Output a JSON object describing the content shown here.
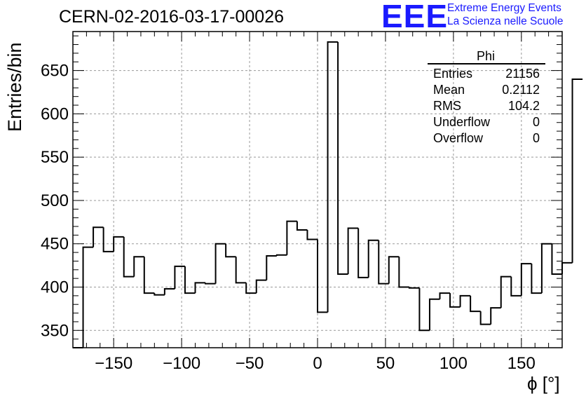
{
  "page": {
    "title": "CERN-02-2016-03-17-00026"
  },
  "logo": {
    "mark": "EEE",
    "line1": "Extreme Energy Events",
    "line2": "La Scienza nelle Scuole"
  },
  "stats": {
    "title": "Phi",
    "rows": [
      {
        "label": "Entries",
        "value": "21156"
      },
      {
        "label": "Mean",
        "value": "0.2112"
      },
      {
        "label": "RMS",
        "value": "104.2"
      },
      {
        "label": "Underflow",
        "value": "0"
      },
      {
        "label": "Overflow",
        "value": "0"
      }
    ]
  },
  "chart_data": {
    "type": "bar",
    "style": "step-histogram",
    "title": "CERN-02-2016-03-17-00026",
    "xlabel": "ϕ [°]",
    "ylabel": "Entries/bin",
    "xlim": [
      -180,
      180
    ],
    "ylim": [
      330,
      695
    ],
    "grid": true,
    "xticks": [
      -150,
      -100,
      -50,
      0,
      50,
      100,
      150
    ],
    "xtick_labels": [
      "−150",
      "−100",
      "−50",
      "0",
      "50",
      "100",
      "150"
    ],
    "yticks": [
      350,
      400,
      450,
      500,
      550,
      600,
      650
    ],
    "bin_edges_start": -180,
    "bin_width": 7.5,
    "values": [
      330,
      446,
      469,
      441,
      458,
      412,
      435,
      393,
      391,
      398,
      424,
      393,
      405,
      404,
      450,
      435,
      405,
      393,
      408,
      436,
      437,
      476,
      466,
      455,
      371,
      683,
      415,
      468,
      411,
      454,
      404,
      435,
      400,
      399,
      350,
      386,
      393,
      377,
      390,
      372,
      357,
      376,
      412,
      390,
      427,
      393,
      450,
      415,
      428,
      640
    ],
    "stat_box_position": "top-right",
    "line_color": "#000000",
    "logo_color": "#1a1aff"
  }
}
